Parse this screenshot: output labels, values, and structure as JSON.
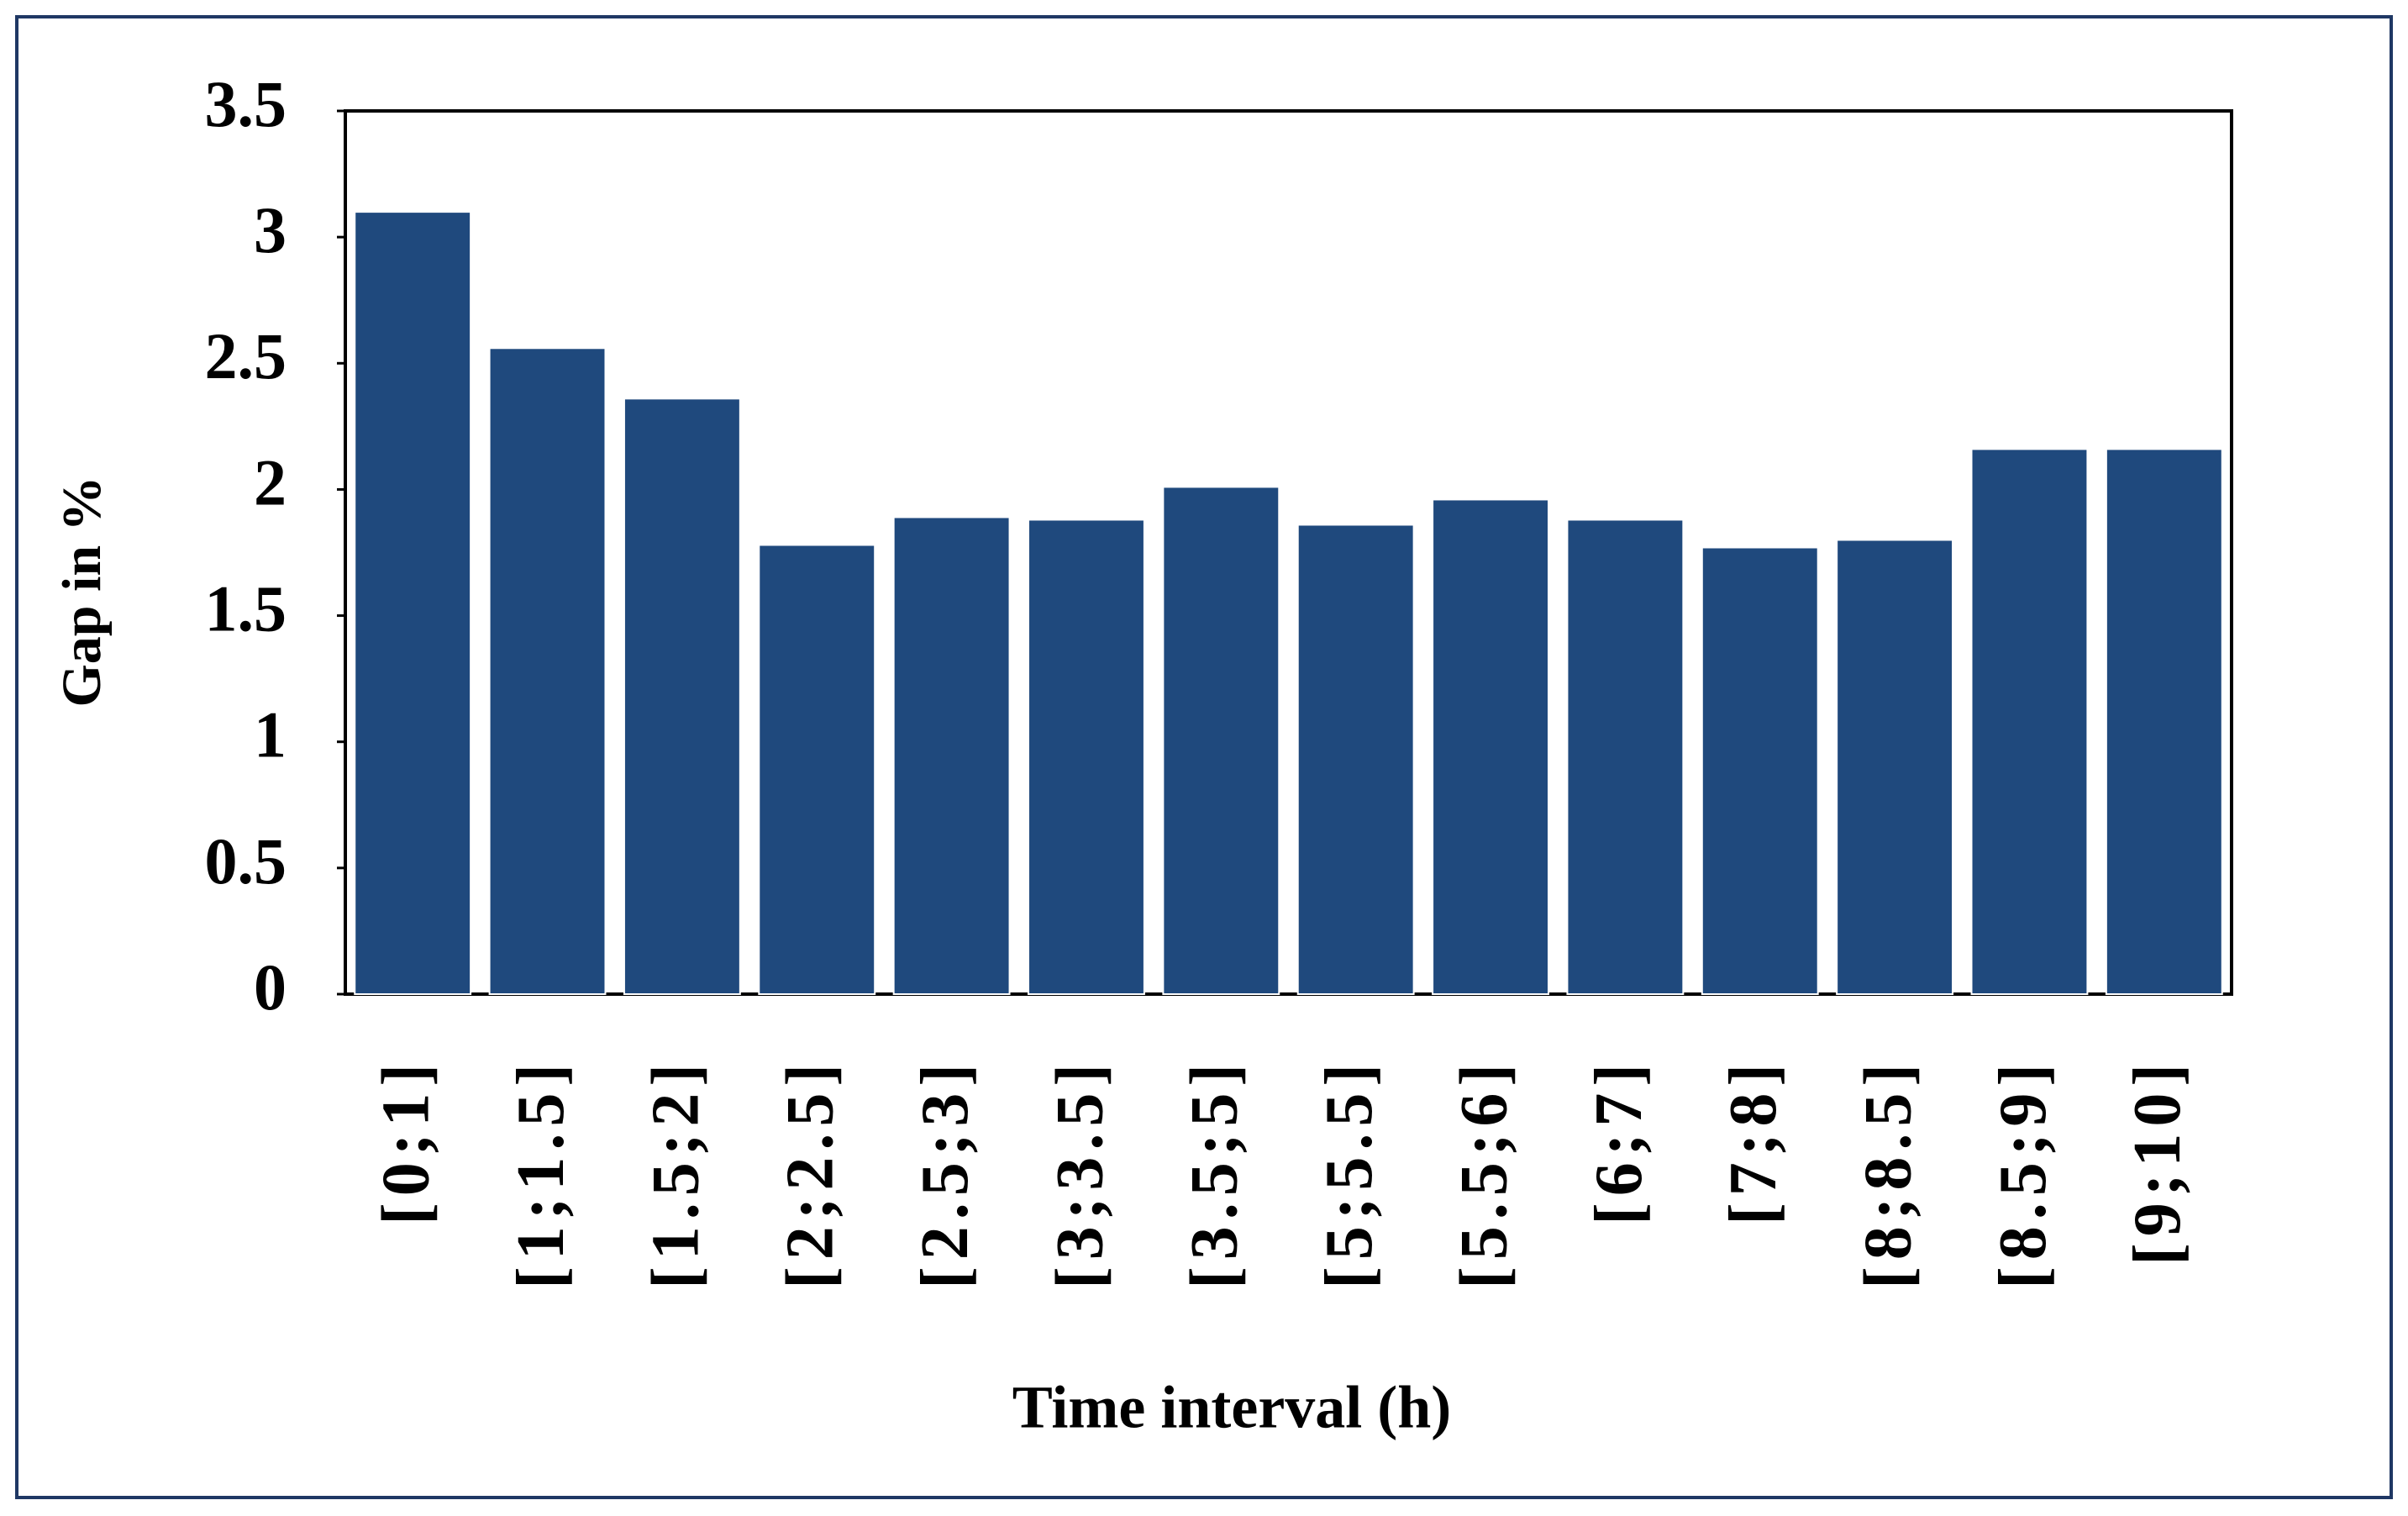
{
  "chart_data": {
    "type": "bar",
    "x_label": "Time interval (h)",
    "y_label": "Gap in %",
    "categories": [
      "[0;1]",
      "[1;1.5]",
      "[1.5;2]",
      "[2;2.5]",
      "[2.5;3]",
      "[3;3.5]",
      "[3.5;5]",
      "[5;5.5]",
      "[5.5;6]",
      "[6;7]",
      "[7;8]",
      "[8;8.5]",
      "[8.5;9]",
      "[9;10]"
    ],
    "values": [
      3.1,
      2.56,
      2.36,
      1.78,
      1.89,
      1.88,
      2.01,
      1.86,
      1.96,
      1.88,
      1.77,
      1.8,
      2.16,
      2.16
    ],
    "color": "#1f497d",
    "ylim": [
      0,
      3.5
    ],
    "yticks": [
      0,
      0.5,
      1,
      1.5,
      2,
      2.5,
      3,
      3.5
    ],
    "grid": false
  }
}
